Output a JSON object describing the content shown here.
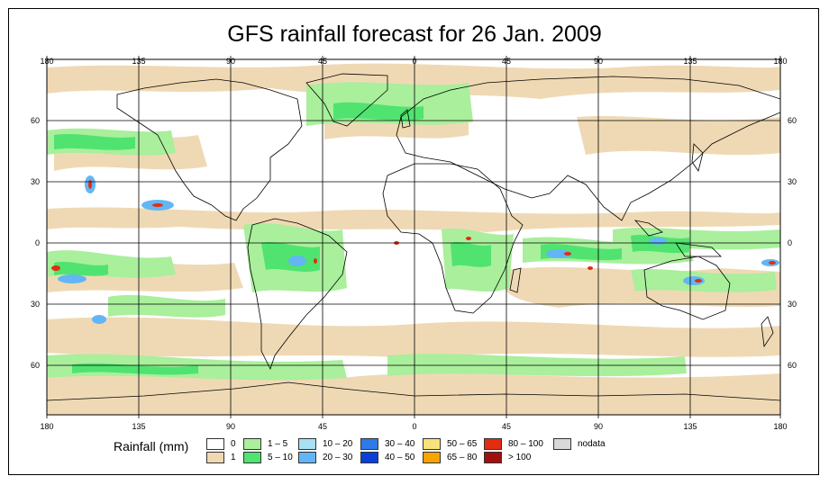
{
  "title": "GFS rainfall forecast for 26 Jan. 2009",
  "axes": {
    "lon_labels": [
      "180",
      "135",
      "90",
      "45",
      "0",
      "45",
      "90",
      "135",
      "180"
    ],
    "lat_labels": [
      "60",
      "30",
      "0",
      "30",
      "60"
    ]
  },
  "legend": {
    "title": "Rainfall (mm)",
    "items": [
      {
        "label": "0",
        "color": "#ffffff"
      },
      {
        "label": "1",
        "color": "#efd9b4"
      },
      {
        "label": "1 – 5",
        "color": "#a9ef9c"
      },
      {
        "label": "5 – 10",
        "color": "#50e36f"
      },
      {
        "label": "10 – 20",
        "color": "#a6e1f5"
      },
      {
        "label": "20 – 30",
        "color": "#63b6f5"
      },
      {
        "label": "30 – 40",
        "color": "#2f7ae8"
      },
      {
        "label": "40 – 50",
        "color": "#0a40d8"
      },
      {
        "label": "50 – 65",
        "color": "#f7e37a"
      },
      {
        "label": "65 – 80",
        "color": "#f5a400"
      },
      {
        "label": "80 – 100",
        "color": "#e22d10"
      },
      {
        "label": "> 100",
        "color": "#a01010"
      },
      {
        "label": "nodata",
        "color": "#d8d8d8"
      }
    ]
  }
}
